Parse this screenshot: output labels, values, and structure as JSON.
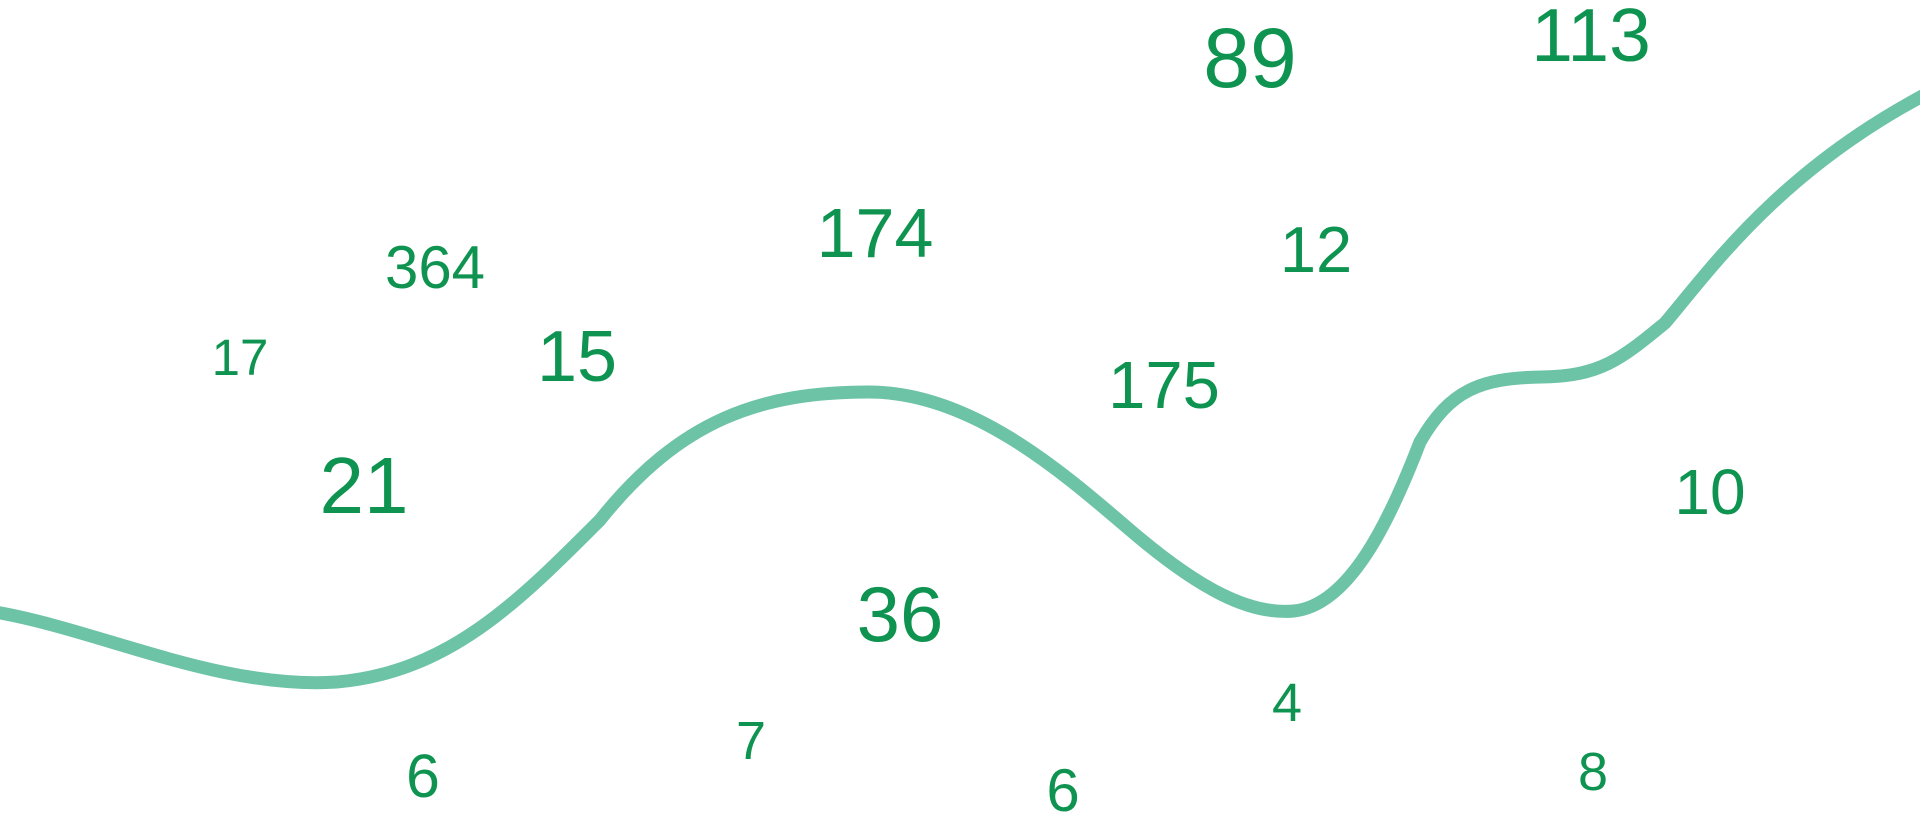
{
  "colors": {
    "number": "#0e9450",
    "curve": "#6cc3a5",
    "background": "#ffffff"
  },
  "numbers": [
    "113",
    "89",
    "174",
    "364",
    "12",
    "17",
    "15",
    "175",
    "21",
    "10",
    "36",
    "4",
    "7",
    "6",
    "6",
    "8"
  ]
}
